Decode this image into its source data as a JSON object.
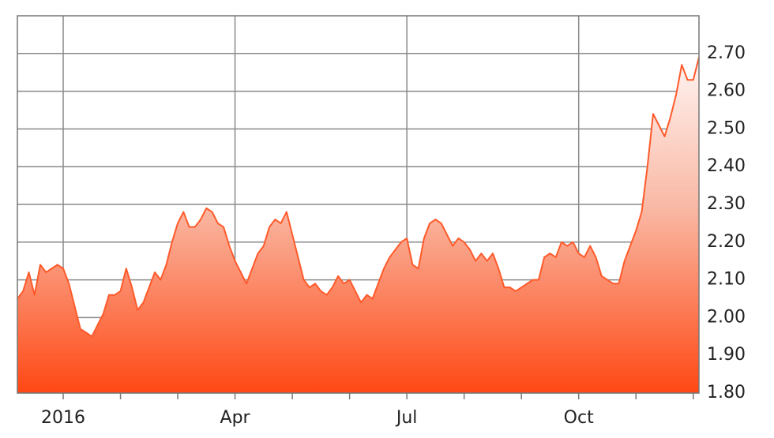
{
  "chart_data": {
    "type": "area",
    "categories": [
      null,
      null,
      null,
      null,
      null,
      null,
      null,
      null,
      "2016",
      null,
      null,
      null,
      null,
      null,
      null,
      null,
      null,
      null,
      null,
      null,
      null,
      null,
      null,
      null,
      null,
      null,
      null,
      null,
      null,
      null,
      null,
      null,
      null,
      null,
      null,
      null,
      null,
      null,
      "Apr",
      null,
      null,
      null,
      null,
      null,
      null,
      null,
      null,
      null,
      null,
      null,
      null,
      null,
      null,
      null,
      null,
      null,
      null,
      null,
      null,
      null,
      null,
      null,
      null,
      null,
      null,
      null,
      null,
      null,
      "Jul",
      null,
      null,
      null,
      null,
      null,
      null,
      null,
      null,
      null,
      null,
      null,
      null,
      null,
      null,
      null,
      null,
      null,
      null,
      null,
      null,
      null,
      null,
      null,
      null,
      null,
      null,
      null,
      null,
      null,
      "Oct",
      null,
      null,
      null,
      null,
      null,
      null,
      null,
      null,
      null,
      null,
      null,
      null,
      null,
      null,
      null,
      null,
      null,
      null,
      null,
      null,
      null
    ],
    "values": [
      2.05,
      2.07,
      2.12,
      2.06,
      2.14,
      2.12,
      2.13,
      2.14,
      2.13,
      2.09,
      2.03,
      1.97,
      1.96,
      1.95,
      1.98,
      2.01,
      2.06,
      2.06,
      2.07,
      2.13,
      2.08,
      2.02,
      2.04,
      2.08,
      2.12,
      2.1,
      2.14,
      2.2,
      2.25,
      2.28,
      2.24,
      2.24,
      2.26,
      2.29,
      2.28,
      2.25,
      2.24,
      2.19,
      2.15,
      2.12,
      2.09,
      2.13,
      2.17,
      2.19,
      2.24,
      2.26,
      2.25,
      2.28,
      2.22,
      2.16,
      2.1,
      2.08,
      2.09,
      2.07,
      2.06,
      2.08,
      2.11,
      2.09,
      2.1,
      2.07,
      2.04,
      2.06,
      2.05,
      2.09,
      2.13,
      2.16,
      2.18,
      2.2,
      2.21,
      2.14,
      2.13,
      2.21,
      2.25,
      2.26,
      2.25,
      2.22,
      2.19,
      2.21,
      2.2,
      2.18,
      2.15,
      2.17,
      2.15,
      2.17,
      2.13,
      2.08,
      2.08,
      2.07,
      2.08,
      2.09,
      2.1,
      2.1,
      2.16,
      2.17,
      2.16,
      2.2,
      2.19,
      2.2,
      2.17,
      2.16,
      2.19,
      2.16,
      2.11,
      2.1,
      2.09,
      2.09,
      2.15,
      2.19,
      2.23,
      2.28,
      2.4,
      2.54,
      2.51,
      2.48,
      2.53,
      2.59,
      2.67,
      2.63,
      2.63,
      2.69
    ],
    "color": "#ff5a2a",
    "ylim": [
      1.8,
      2.8
    ],
    "yticks": [
      {
        "value": 1.8,
        "label": "1.80"
      },
      {
        "value": 1.9,
        "label": "1.90"
      },
      {
        "value": 2.0,
        "label": "2.00"
      },
      {
        "value": 2.1,
        "label": "2.10"
      },
      {
        "value": 2.2,
        "label": "2.20"
      },
      {
        "value": 2.3,
        "label": "2.30"
      },
      {
        "value": 2.4,
        "label": "2.40"
      },
      {
        "value": 2.5,
        "label": "2.50"
      },
      {
        "value": 2.6,
        "label": "2.60"
      },
      {
        "value": 2.7,
        "label": "2.70"
      }
    ],
    "grid": true
  }
}
